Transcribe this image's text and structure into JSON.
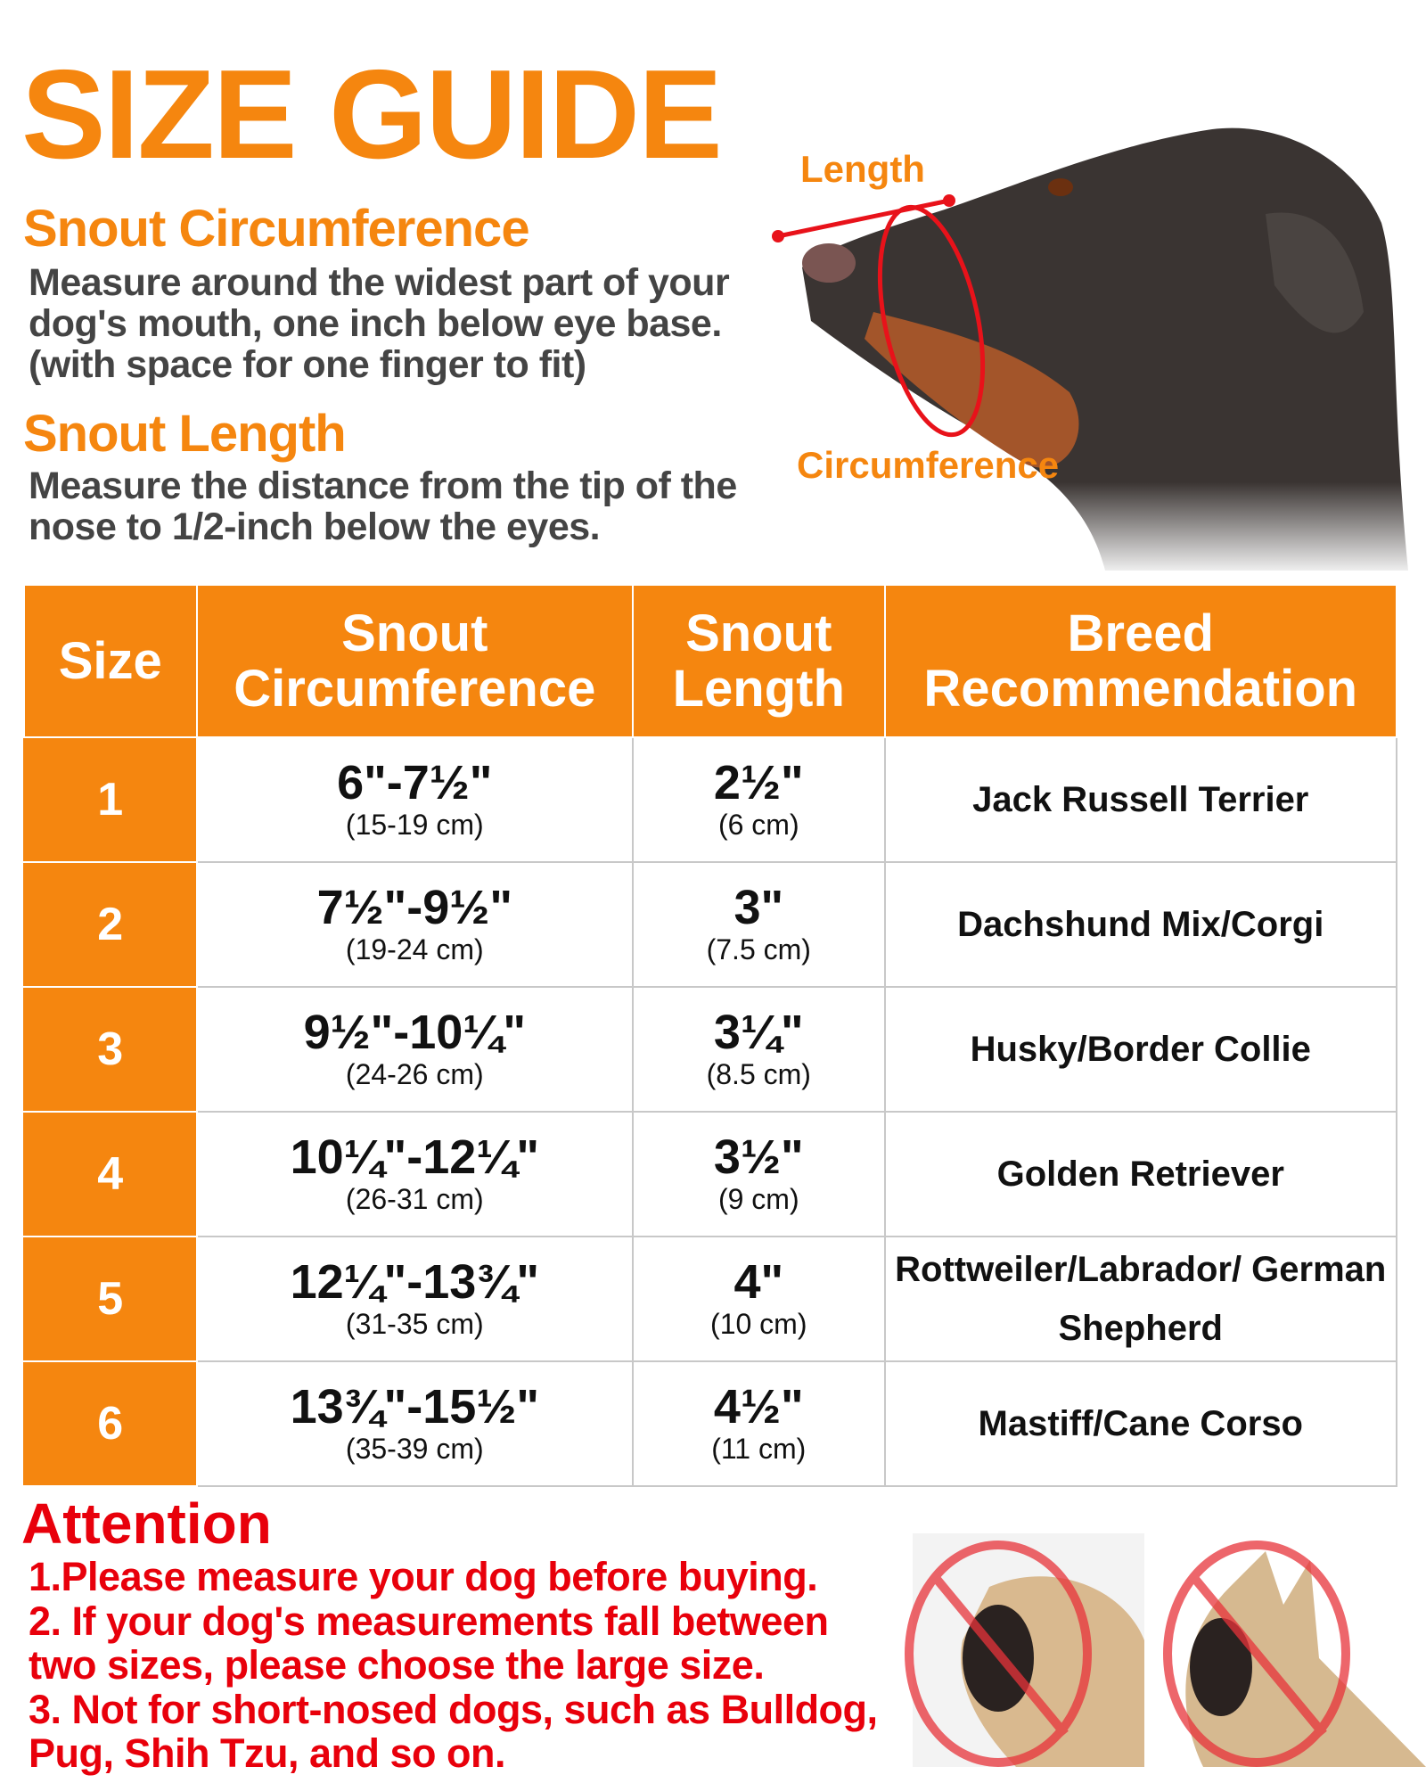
{
  "title": "SIZE GUIDE",
  "sections": [
    {
      "heading": "Snout Circumference",
      "lines": [
        "Measure around the widest part of your",
        "dog's mouth, one inch below eye base.",
        "(with space for one finger to fit)"
      ]
    },
    {
      "heading": "Snout Length",
      "lines": [
        "Measure the distance from the tip of the",
        "nose to 1/2-inch below the eyes."
      ]
    }
  ],
  "diagram": {
    "length_label": "Length",
    "circumference_label": "Circumference",
    "marker_color": "#e8121a"
  },
  "table": {
    "headers": [
      "Size",
      "Snout Circumference",
      "Snout Length",
      "Breed Recommendation"
    ],
    "rows": [
      {
        "size": "1",
        "circ": "6\"-7½\"",
        "circ_cm": "(15-19 cm)",
        "len": "2½\"",
        "len_cm": "(6 cm)",
        "breed": "Jack Russell Terrier"
      },
      {
        "size": "2",
        "circ": "7½\"-9½\"",
        "circ_cm": "(19-24 cm)",
        "len": "3\"",
        "len_cm": "(7.5 cm)",
        "breed": "Dachshund Mix/Corgi"
      },
      {
        "size": "3",
        "circ": "9½\"-10¼\"",
        "circ_cm": "(24-26 cm)",
        "len": "3¼\"",
        "len_cm": "(8.5 cm)",
        "breed": "Husky/Border Collie"
      },
      {
        "size": "4",
        "circ": "10¼\"-12¼\"",
        "circ_cm": "(26-31 cm)",
        "len": "3½\"",
        "len_cm": "(9 cm)",
        "breed": "Golden Retriever"
      },
      {
        "size": "5",
        "circ": "12¼\"-13¾\"",
        "circ_cm": "(31-35 cm)",
        "len": "4\"",
        "len_cm": "(10 cm)",
        "breed": "Rottweiler/Labrador/ German Shepherd"
      },
      {
        "size": "6",
        "circ": "13¾\"-15½\"",
        "circ_cm": "(35-39 cm)",
        "len": "4½\"",
        "len_cm": "(11 cm)",
        "breed": "Mastiff/Cane Corso"
      }
    ]
  },
  "attention": {
    "heading": "Attention",
    "lines": [
      "1.Please measure your dog before buying.",
      "2. If your dog's measurements fall between",
      "two sizes, please choose the large size.",
      "3. Not for short-nosed dogs, such as Bulldog,",
      "Pug, Shih Tzu, and so on."
    ]
  },
  "colors": {
    "accent": "#f5860f",
    "warning": "#e8000b"
  },
  "icons": [
    "no-entry-icon"
  ]
}
